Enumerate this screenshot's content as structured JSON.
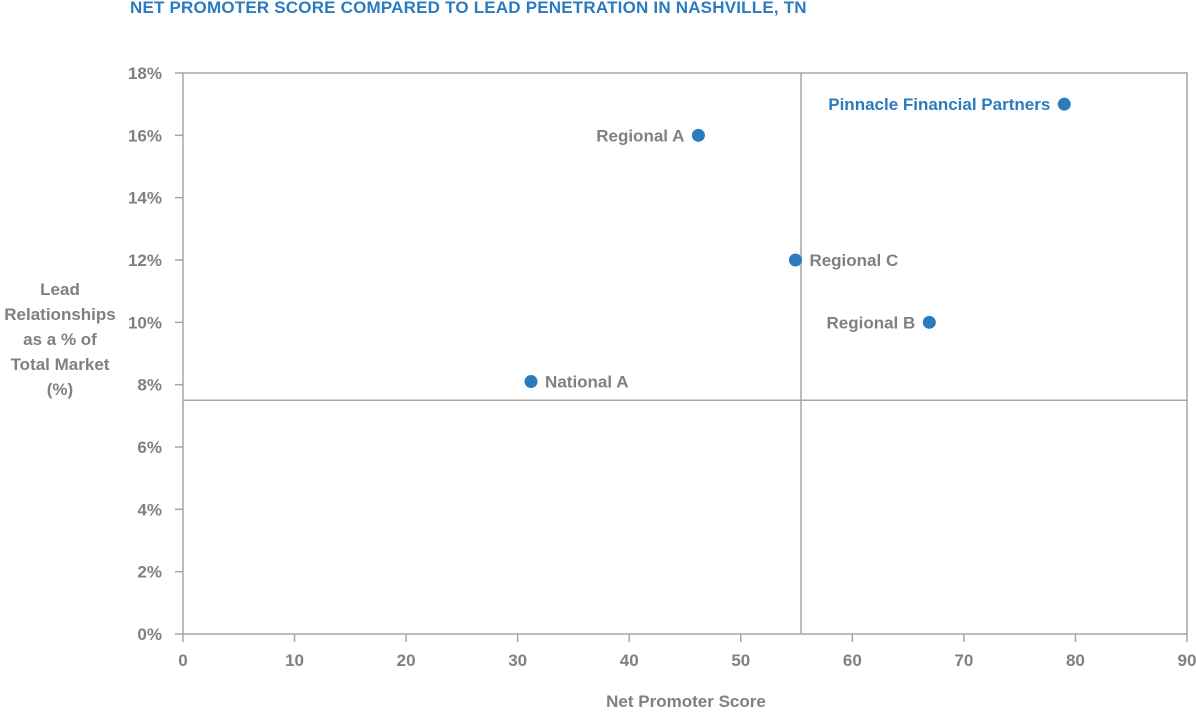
{
  "colors": {
    "title": "#2a7bbf",
    "point": "#2a7bbf",
    "highlight_label": "#2a7bbf",
    "text": "#808080",
    "axis": "#a6a6a6"
  },
  "chart_data": {
    "type": "scatter",
    "title": "NET PROMOTER SCORE COMPARED TO LEAD PENETRATION IN NASHVILLE, TN",
    "xlabel": "Net Promoter Score",
    "ylabel": "Lead\nRelationships\nas a % of\nTotal Market\n(%)",
    "xlim": [
      0,
      90
    ],
    "ylim": [
      0,
      18
    ],
    "x_ticks": [
      0,
      10,
      20,
      30,
      40,
      50,
      60,
      70,
      80,
      90
    ],
    "x_tick_labels": [
      "0",
      "10",
      "20",
      "30",
      "40",
      "50",
      "60",
      "70",
      "80",
      "90"
    ],
    "y_ticks": [
      0,
      2,
      4,
      6,
      8,
      10,
      12,
      14,
      16,
      18
    ],
    "y_tick_labels": [
      "0%",
      "2%",
      "4%",
      "6%",
      "8%",
      "10%",
      "12%",
      "14%",
      "16%",
      "18%"
    ],
    "grid": false,
    "reference_lines": {
      "x": 55.4,
      "y": 7.5
    },
    "points": [
      {
        "label": "Pinnacle Financial Partners",
        "x": 79,
        "y": 17,
        "label_side": "left",
        "highlight": true
      },
      {
        "label": "Regional A",
        "x": 46.2,
        "y": 16,
        "label_side": "left",
        "highlight": false
      },
      {
        "label": "Regional C",
        "x": 54.9,
        "y": 12,
        "label_side": "right",
        "highlight": false
      },
      {
        "label": "Regional B",
        "x": 66.9,
        "y": 10,
        "label_side": "left",
        "highlight": false
      },
      {
        "label": "National A",
        "x": 31.2,
        "y": 8.1,
        "label_side": "right",
        "highlight": false
      }
    ]
  }
}
